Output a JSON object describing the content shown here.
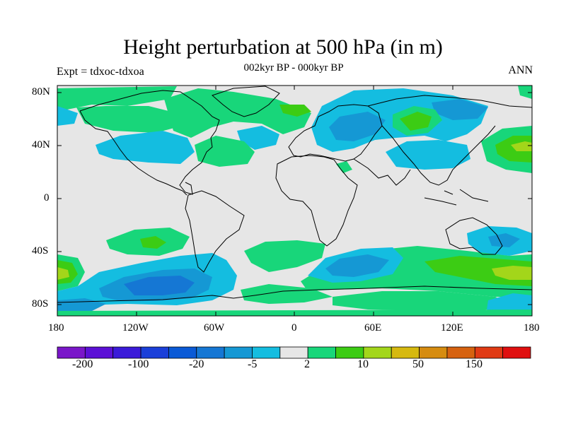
{
  "title": "Height perturbation at 500 hPa (in m)",
  "subtitle": "002kyr BP - 000kyr BP",
  "left_label": "Expt = tdxoc-tdxoa",
  "right_label": "ANN",
  "lat_ticks": [
    "80N",
    "40N",
    "0",
    "40S",
    "80S"
  ],
  "lon_ticks": [
    "180",
    "120W",
    "60W",
    "0",
    "60E",
    "120E",
    "180"
  ],
  "colorbar": {
    "colors": [
      "#7a16c9",
      "#5c10d6",
      "#3b1ad9",
      "#1a3fd9",
      "#0a5ad6",
      "#1577d4",
      "#1598d4",
      "#14bde0",
      "#e6e6e6",
      "#18d67a",
      "#3ccc14",
      "#a3d61a",
      "#d6b90f",
      "#d68c0f",
      "#d6620f",
      "#e03a14",
      "#e00f0f"
    ],
    "labels": [
      "-200",
      "-100",
      "-20",
      "-5",
      "2",
      "10",
      "50",
      "150"
    ]
  },
  "map_colors": {
    "background": "#e6e6e6",
    "light_blue": "#14bde0",
    "mid_blue": "#1598d4",
    "deep_blue": "#1577d4",
    "green": "#18d67a",
    "bright_green": "#3ccc14",
    "yellow_green": "#a3d61a"
  }
}
